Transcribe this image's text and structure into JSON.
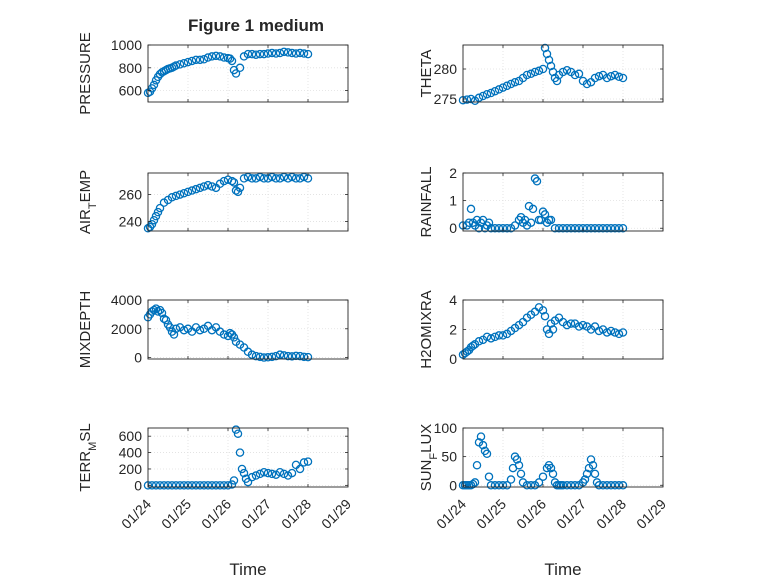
{
  "figure": {
    "title": "Figure 1 medium"
  },
  "chart_data": [
    {
      "id": "pressure",
      "type": "scatter",
      "ylabel": "PRESSURE",
      "ylim": [
        500,
        1000
      ],
      "yticks": [
        600,
        800,
        1000
      ],
      "grid": true,
      "x": [
        0.0,
        0.05,
        0.1,
        0.15,
        0.2,
        0.25,
        0.3,
        0.35,
        0.4,
        0.45,
        0.5,
        0.55,
        0.6,
        0.65,
        0.7,
        0.8,
        0.9,
        1.0,
        1.1,
        1.2,
        1.3,
        1.4,
        1.5,
        1.6,
        1.7,
        1.8,
        1.9,
        2.0,
        2.05,
        2.1,
        2.15,
        2.2,
        2.3,
        2.4,
        2.5,
        2.6,
        2.7,
        2.8,
        2.9,
        3.0,
        3.1,
        3.2,
        3.3,
        3.4,
        3.5,
        3.6,
        3.7,
        3.8,
        3.9,
        4.0
      ],
      "y": [
        580,
        590,
        620,
        650,
        690,
        720,
        745,
        760,
        770,
        780,
        790,
        795,
        800,
        810,
        820,
        830,
        840,
        850,
        860,
        870,
        870,
        875,
        890,
        900,
        905,
        900,
        890,
        885,
        880,
        860,
        780,
        750,
        800,
        900,
        920,
        920,
        915,
        920,
        920,
        925,
        930,
        925,
        930,
        940,
        935,
        930,
        925,
        930,
        925,
        920
      ]
    },
    {
      "id": "theta",
      "type": "scatter",
      "ylabel": "THETA",
      "ylim": [
        274.5,
        284
      ],
      "yticks": [
        275,
        280
      ],
      "grid": true,
      "x": [
        0.0,
        0.1,
        0.2,
        0.3,
        0.4,
        0.5,
        0.6,
        0.7,
        0.8,
        0.9,
        1.0,
        1.1,
        1.2,
        1.3,
        1.4,
        1.5,
        1.6,
        1.7,
        1.8,
        1.9,
        2.0,
        2.05,
        2.1,
        2.15,
        2.2,
        2.25,
        2.3,
        2.35,
        2.4,
        2.5,
        2.6,
        2.7,
        2.8,
        2.9,
        3.0,
        3.1,
        3.2,
        3.3,
        3.4,
        3.5,
        3.6,
        3.7,
        3.8,
        3.9,
        4.0
      ],
      "y": [
        274.8,
        274.9,
        275.0,
        274.7,
        275.2,
        275.5,
        275.8,
        276.0,
        276.3,
        276.6,
        276.9,
        277.2,
        277.5,
        277.8,
        278.0,
        278.5,
        279.0,
        279.2,
        279.5,
        279.7,
        280.0,
        283.5,
        282.5,
        281.5,
        280.5,
        279.5,
        278.5,
        278.0,
        279.0,
        279.5,
        279.8,
        279.5,
        279.0,
        279.2,
        278.0,
        277.5,
        277.8,
        278.5,
        278.8,
        279.0,
        278.5,
        278.8,
        279.0,
        278.7,
        278.5
      ]
    },
    {
      "id": "air_temp",
      "type": "scatter",
      "ylabel": "AIR_TEMP",
      "ylim": [
        233,
        276
      ],
      "yticks": [
        240,
        260
      ],
      "grid": true,
      "x": [
        0.0,
        0.05,
        0.1,
        0.15,
        0.2,
        0.25,
        0.3,
        0.4,
        0.5,
        0.6,
        0.7,
        0.8,
        0.9,
        1.0,
        1.1,
        1.2,
        1.3,
        1.4,
        1.5,
        1.6,
        1.7,
        1.8,
        1.9,
        2.0,
        2.1,
        2.15,
        2.2,
        2.25,
        2.3,
        2.4,
        2.5,
        2.6,
        2.7,
        2.8,
        2.9,
        3.0,
        3.1,
        3.2,
        3.3,
        3.4,
        3.5,
        3.6,
        3.7,
        3.8,
        3.9,
        4.0
      ],
      "y": [
        235,
        236,
        238,
        241,
        244,
        247,
        250,
        254,
        256,
        258,
        259,
        260,
        261,
        262,
        263,
        264,
        265,
        266,
        267,
        266,
        265,
        268,
        270,
        271,
        270,
        269,
        263,
        262,
        265,
        272,
        273,
        272,
        272,
        273,
        272,
        272,
        273,
        272,
        272,
        273,
        272,
        273,
        272,
        272,
        273,
        272
      ]
    },
    {
      "id": "rainfall",
      "type": "scatter",
      "ylabel": "RAINFALL",
      "ylim": [
        -0.1,
        2.0
      ],
      "yticks": [
        0,
        1,
        2
      ],
      "grid": true,
      "x": [
        0.0,
        0.1,
        0.15,
        0.2,
        0.25,
        0.3,
        0.35,
        0.4,
        0.45,
        0.5,
        0.55,
        0.6,
        0.65,
        0.7,
        0.8,
        0.9,
        1.0,
        1.1,
        1.2,
        1.3,
        1.4,
        1.45,
        1.5,
        1.55,
        1.6,
        1.65,
        1.7,
        1.75,
        1.8,
        1.85,
        1.9,
        1.95,
        2.0,
        2.05,
        2.1,
        2.15,
        2.2,
        2.3,
        2.4,
        2.5,
        2.6,
        2.7,
        2.8,
        2.9,
        3.0,
        3.1,
        3.2,
        3.3,
        3.4,
        3.5,
        3.6,
        3.7,
        3.8,
        3.9,
        4.0
      ],
      "y": [
        0.1,
        0.1,
        0.2,
        0.7,
        0.2,
        0.1,
        0.3,
        0.0,
        0.2,
        0.3,
        0.0,
        0.1,
        0.2,
        0.0,
        0.0,
        0.0,
        0.0,
        0.0,
        0.0,
        0.1,
        0.3,
        0.4,
        0.2,
        0.3,
        0.1,
        0.8,
        0.2,
        0.7,
        1.8,
        1.7,
        0.3,
        0.3,
        0.6,
        0.5,
        0.2,
        0.3,
        0.3,
        0.0,
        0.0,
        0.0,
        0.0,
        0.0,
        0.0,
        0.0,
        0.0,
        0.0,
        0.0,
        0.0,
        0.0,
        0.0,
        0.0,
        0.0,
        0.0,
        0.0,
        0.0
      ]
    },
    {
      "id": "mixdepth",
      "type": "scatter",
      "ylabel": "MIXDEPTH",
      "ylim": [
        -100,
        4000
      ],
      "yticks": [
        0,
        2000,
        4000
      ],
      "grid": true,
      "x": [
        0.0,
        0.05,
        0.1,
        0.15,
        0.2,
        0.25,
        0.3,
        0.35,
        0.4,
        0.45,
        0.5,
        0.55,
        0.6,
        0.65,
        0.7,
        0.8,
        0.9,
        1.0,
        1.1,
        1.2,
        1.3,
        1.4,
        1.5,
        1.6,
        1.7,
        1.8,
        1.9,
        2.0,
        2.05,
        2.1,
        2.15,
        2.2,
        2.3,
        2.4,
        2.5,
        2.6,
        2.7,
        2.8,
        2.9,
        3.0,
        3.1,
        3.2,
        3.3,
        3.4,
        3.5,
        3.6,
        3.7,
        3.8,
        3.9,
        4.0
      ],
      "y": [
        2800,
        3000,
        3200,
        3300,
        3400,
        3200,
        3300,
        3100,
        2700,
        2600,
        2300,
        2100,
        1800,
        1600,
        2000,
        2100,
        1900,
        2000,
        1800,
        2100,
        1900,
        2000,
        2200,
        1900,
        2100,
        1800,
        1600,
        1500,
        1700,
        1600,
        1400,
        1100,
        900,
        700,
        400,
        200,
        100,
        50,
        0,
        20,
        50,
        100,
        200,
        150,
        100,
        80,
        120,
        100,
        50,
        30
      ]
    },
    {
      "id": "h2omixra",
      "type": "scatter",
      "ylabel": "H2OMIXRA",
      "ylim": [
        0,
        4
      ],
      "yticks": [
        0,
        2,
        4
      ],
      "grid": true,
      "x": [
        0.0,
        0.05,
        0.1,
        0.15,
        0.2,
        0.25,
        0.3,
        0.4,
        0.5,
        0.6,
        0.7,
        0.8,
        0.9,
        1.0,
        1.1,
        1.2,
        1.3,
        1.4,
        1.5,
        1.6,
        1.7,
        1.8,
        1.9,
        2.0,
        2.05,
        2.1,
        2.15,
        2.2,
        2.25,
        2.3,
        2.4,
        2.5,
        2.6,
        2.7,
        2.8,
        2.9,
        3.0,
        3.1,
        3.2,
        3.3,
        3.4,
        3.5,
        3.6,
        3.7,
        3.8,
        3.9,
        4.0
      ],
      "y": [
        0.3,
        0.4,
        0.5,
        0.6,
        0.8,
        0.9,
        1.0,
        1.2,
        1.3,
        1.5,
        1.4,
        1.5,
        1.6,
        1.6,
        1.7,
        1.9,
        2.1,
        2.3,
        2.5,
        2.8,
        3.0,
        3.2,
        3.5,
        3.3,
        2.9,
        2.0,
        1.7,
        2.4,
        2.0,
        2.6,
        2.8,
        2.5,
        2.3,
        2.4,
        2.4,
        2.2,
        2.3,
        2.2,
        2.0,
        2.2,
        1.9,
        2.0,
        1.8,
        1.9,
        1.8,
        1.7,
        1.8
      ]
    },
    {
      "id": "terr_msl",
      "type": "scatter",
      "ylabel": "TERR_MSL",
      "ylim": [
        -20,
        700
      ],
      "yticks": [
        0,
        200,
        400,
        600
      ],
      "grid": true,
      "x": [
        0.0,
        0.1,
        0.2,
        0.3,
        0.4,
        0.5,
        0.6,
        0.7,
        0.8,
        0.9,
        1.0,
        1.1,
        1.2,
        1.3,
        1.4,
        1.5,
        1.6,
        1.7,
        1.8,
        1.9,
        2.0,
        2.1,
        2.15,
        2.2,
        2.25,
        2.3,
        2.35,
        2.4,
        2.45,
        2.5,
        2.6,
        2.7,
        2.8,
        2.9,
        3.0,
        3.1,
        3.2,
        3.3,
        3.4,
        3.5,
        3.6,
        3.7,
        3.8,
        3.9,
        4.0
      ],
      "y": [
        0,
        0,
        0,
        0,
        0,
        0,
        0,
        0,
        0,
        0,
        0,
        0,
        0,
        0,
        0,
        0,
        0,
        0,
        0,
        0,
        0,
        10,
        60,
        680,
        630,
        400,
        200,
        150,
        80,
        40,
        100,
        120,
        140,
        160,
        150,
        140,
        130,
        160,
        140,
        120,
        150,
        250,
        200,
        280,
        290
      ]
    },
    {
      "id": "sun_flux",
      "type": "scatter",
      "ylabel": "SUN_FLUX",
      "ylim": [
        -3,
        100
      ],
      "yticks": [
        0,
        50,
        100
      ],
      "grid": true,
      "x": [
        0.0,
        0.05,
        0.1,
        0.15,
        0.2,
        0.25,
        0.3,
        0.35,
        0.4,
        0.45,
        0.5,
        0.55,
        0.6,
        0.65,
        0.7,
        0.8,
        0.9,
        1.0,
        1.1,
        1.2,
        1.25,
        1.3,
        1.35,
        1.4,
        1.45,
        1.5,
        1.6,
        1.7,
        1.8,
        1.9,
        2.0,
        2.1,
        2.15,
        2.2,
        2.25,
        2.3,
        2.35,
        2.4,
        2.45,
        2.5,
        2.6,
        2.7,
        2.8,
        2.9,
        3.0,
        3.05,
        3.1,
        3.15,
        3.2,
        3.25,
        3.3,
        3.35,
        3.4,
        3.5,
        3.6,
        3.7,
        3.8,
        3.9,
        4.0
      ],
      "y": [
        0,
        0,
        0,
        0,
        0,
        2,
        5,
        35,
        75,
        85,
        70,
        60,
        55,
        15,
        0,
        0,
        0,
        0,
        0,
        10,
        30,
        50,
        45,
        35,
        20,
        5,
        0,
        0,
        0,
        5,
        15,
        30,
        35,
        30,
        20,
        5,
        0,
        0,
        0,
        0,
        0,
        0,
        0,
        0,
        5,
        10,
        20,
        30,
        45,
        35,
        20,
        5,
        0,
        0,
        0,
        0,
        0,
        0,
        0
      ]
    }
  ],
  "x_axis": {
    "label": "Time",
    "range": [
      0,
      5
    ],
    "tick_positions": [
      0,
      1,
      2,
      3,
      4,
      5
    ],
    "tick_labels": [
      "01/24",
      "01/25",
      "01/26",
      "01/27",
      "01/28",
      "01/29"
    ]
  },
  "colors": {
    "marker": "#0072BD",
    "axis": "#262626",
    "grid": "#DFDFDF"
  }
}
